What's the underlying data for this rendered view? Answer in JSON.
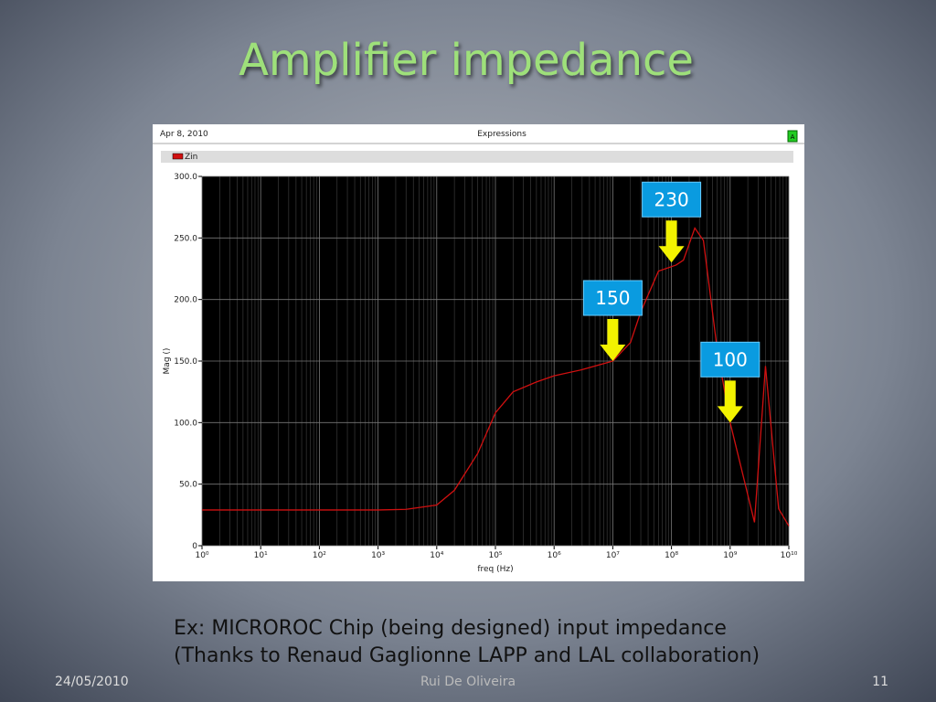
{
  "slide": {
    "title": "Amplifier impedance",
    "caption": [
      "Ex: MICROROC Chip (being designed) input impedance",
      "(Thanks to Renaud Gaglionne LAPP and LAL collaboration)"
    ],
    "footer": {
      "date": "24/05/2010",
      "author": "Rui De Oliveira",
      "page": "11"
    }
  },
  "chart_data": {
    "type": "line",
    "header_date": "Apr 8, 2010",
    "header_title": "Expressions",
    "header_button": "A",
    "x_label": "freq (Hz)",
    "y_label": "Mag ()",
    "log_x": true,
    "grid": true,
    "xlim": [
      1,
      10000000000
    ],
    "xticks": [
      {
        "value": 1,
        "label": "10⁰"
      },
      {
        "value": 10,
        "label": "10¹"
      },
      {
        "value": 100,
        "label": "10²"
      },
      {
        "value": 1000,
        "label": "10³"
      },
      {
        "value": 10000,
        "label": "10⁴"
      },
      {
        "value": 100000,
        "label": "10⁵"
      },
      {
        "value": 1000000,
        "label": "10⁶"
      },
      {
        "value": 10000000,
        "label": "10⁷"
      },
      {
        "value": 100000000,
        "label": "10⁸"
      },
      {
        "value": 1000000000,
        "label": "10⁹"
      },
      {
        "value": 10000000000,
        "label": "10¹⁰"
      }
    ],
    "ylim": [
      0,
      300
    ],
    "yticks": [
      0,
      {
        "value": 50,
        "label": "50.0"
      },
      {
        "value": 100,
        "label": "100.0"
      },
      {
        "value": 150,
        "label": "150.0"
      },
      {
        "value": 200,
        "label": "200.0"
      },
      {
        "value": 250,
        "label": "250.0"
      },
      {
        "value": 300,
        "label": "300.0"
      }
    ],
    "x": [
      1,
      10,
      100,
      1000,
      3000,
      10000,
      20000,
      50000,
      100000,
      200000,
      500000,
      1000000,
      3000000,
      10000000,
      20000000,
      30000000,
      60000000,
      120000000,
      160000000,
      250000000,
      350000000,
      600000000,
      1000000000,
      2600000000,
      4000000000,
      6700000000,
      10000000000
    ],
    "series": [
      {
        "name": "Zin",
        "color": "#d01010",
        "values": [
          29,
          29,
          29,
          29,
          29.5,
          33,
          45,
          75,
          108,
          125,
          133,
          138,
          143,
          150,
          165,
          190,
          223,
          228,
          232,
          258,
          248,
          160,
          100,
          19,
          146,
          30,
          16
        ]
      }
    ],
    "annotations": [
      {
        "value": 230,
        "x": 100000000
      },
      {
        "value": 150,
        "x": 10000000
      },
      {
        "value": 100,
        "x": 1000000000
      }
    ]
  }
}
